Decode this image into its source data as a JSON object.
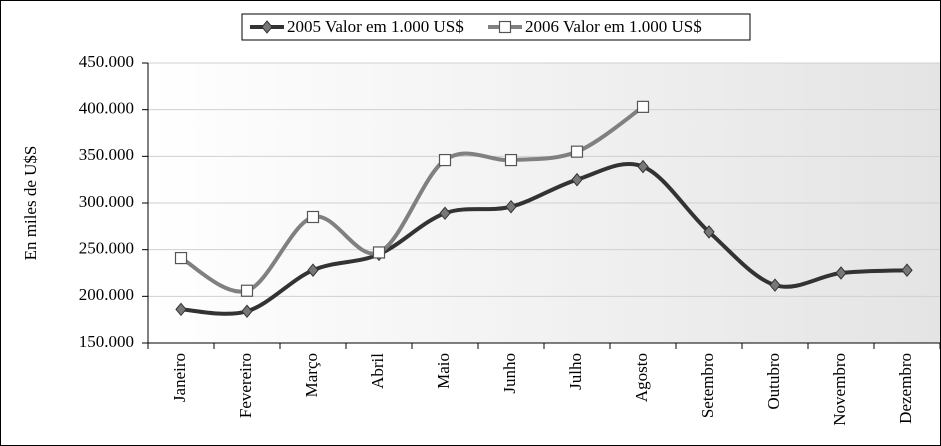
{
  "chart_data": {
    "type": "line",
    "y_label": "En miles de U$S",
    "categories": [
      "Janeiro",
      "Fevereiro",
      "Março",
      "Abril",
      "Maio",
      "Junho",
      "Julho",
      "Agosto",
      "Setembro",
      "Outubro",
      "Novembro",
      "Dezembro"
    ],
    "series": [
      {
        "name": "2005 Valor em 1.000 US$",
        "color": "#333333",
        "marker": "diamond",
        "values": [
          186000,
          184000,
          228000,
          245000,
          289000,
          296000,
          325000,
          339000,
          269000,
          212000,
          225000,
          228000
        ]
      },
      {
        "name": "2006 Valor em 1.000 US$",
        "color": "#808080",
        "marker": "square",
        "values": [
          241000,
          206000,
          285000,
          247000,
          346000,
          346000,
          355000,
          403000,
          null,
          null,
          null,
          null
        ]
      }
    ],
    "ylim": [
      150000,
      450000
    ],
    "yticks": [
      {
        "value": 150000,
        "label": "150.000"
      },
      {
        "value": 200000,
        "label": "200.000"
      },
      {
        "value": 250000,
        "label": "250.000"
      },
      {
        "value": 300000,
        "label": "300.000"
      },
      {
        "value": 350000,
        "label": "350.000"
      },
      {
        "value": 400000,
        "label": "400.000"
      },
      {
        "value": 450000,
        "label": "450.000"
      }
    ],
    "grid": true,
    "smooth": true,
    "legend": "top"
  }
}
